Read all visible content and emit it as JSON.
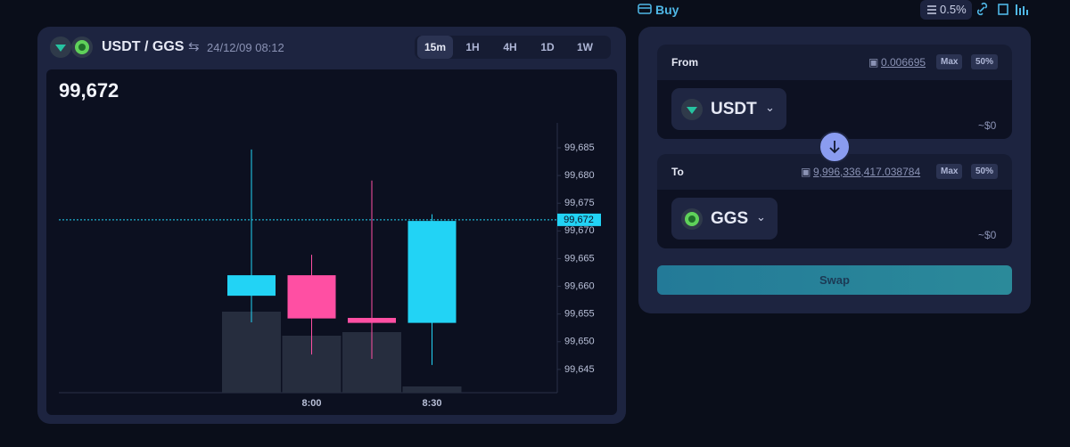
{
  "header": {
    "pair": "USDT / GGS",
    "timestamp": "24/12/09 08:12",
    "timeframes": [
      "15m",
      "1H",
      "4H",
      "1D",
      "1W"
    ]
  },
  "chart_data": {
    "type": "candlestick",
    "categories": [
      null,
      "8:00",
      null,
      "8:30"
    ],
    "open": [
      99658.3,
      99662.0,
      99654.3,
      99653.4
    ],
    "high": [
      99684.7,
      99665.7,
      99679.1,
      99673.0
    ],
    "low": [
      99653.5,
      99647.7,
      99646.9,
      99645.8
    ],
    "close": [
      99662.0,
      99654.2,
      99653.4,
      99671.8
    ],
    "volume": [
      91,
      64,
      68,
      7
    ],
    "up_color": "#22d3f5",
    "down_color": "#ff4fa3",
    "volume_color": "#262d3e",
    "ylim": [
      99640.8,
      99689.5
    ],
    "yticks": [
      {
        "value": 99645,
        "label": "99,645"
      },
      {
        "value": 99650,
        "label": "99,650"
      },
      {
        "value": 99655,
        "label": "99,655"
      },
      {
        "value": 99660,
        "label": "99,660"
      },
      {
        "value": 99665,
        "label": "99,665"
      },
      {
        "value": 99670,
        "label": "99,670"
      },
      {
        "value": 99675,
        "label": "99,675"
      },
      {
        "value": 99680,
        "label": "99,680"
      },
      {
        "value": 99685,
        "label": "99,685"
      }
    ],
    "current_price": {
      "value": 99672,
      "label": "99,672"
    }
  },
  "swap": {
    "buy": "Buy",
    "slippage": "0.5%",
    "from": {
      "label": "From",
      "balance": "0.006695",
      "max": "Max",
      "half": "50%",
      "token": "USDT",
      "usd": "~$0"
    },
    "to": {
      "label": "To",
      "balance": "9,996,336,417.038784",
      "max": "Max",
      "half": "50%",
      "token": "GGS",
      "usd": "~$0"
    },
    "button": "Swap"
  }
}
